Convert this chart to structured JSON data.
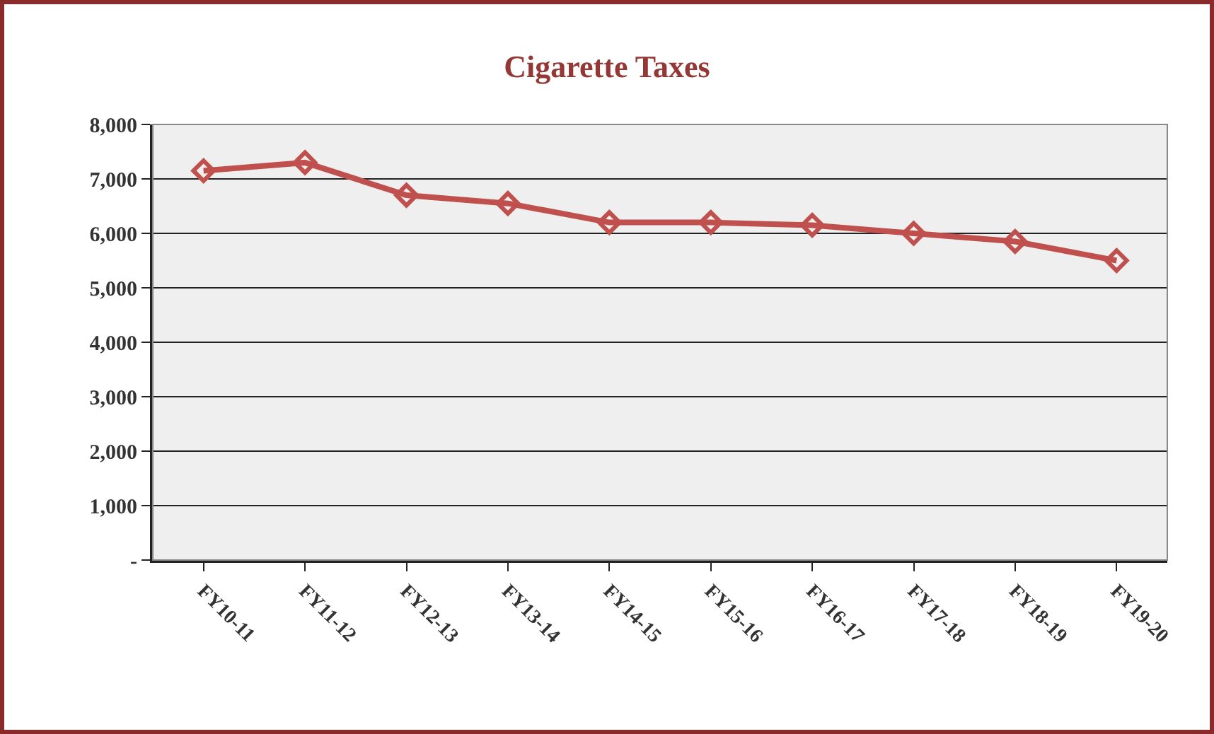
{
  "chart_data": {
    "type": "line",
    "title": "Cigarette Taxes",
    "categories": [
      "FY10-11",
      "FY11-12",
      "FY12-13",
      "FY13-14",
      "FY14-15",
      "FY15-16",
      "FY16-17",
      "FY17-18",
      "FY18-19",
      "FY19-20"
    ],
    "series": [
      {
        "color": "#c0504d",
        "values": [
          7150,
          7300,
          6700,
          6550,
          6200,
          6200,
          6150,
          6000,
          5850,
          5500
        ]
      }
    ],
    "ylim": [
      0,
      8000
    ],
    "yticks": [
      {
        "value": 0,
        "label": "-"
      },
      {
        "value": 1000,
        "label": "1,000"
      },
      {
        "value": 2000,
        "label": "2,000"
      },
      {
        "value": 3000,
        "label": "3,000"
      },
      {
        "value": 4000,
        "label": "4,000"
      },
      {
        "value": 5000,
        "label": "5,000"
      },
      {
        "value": 6000,
        "label": "6,000"
      },
      {
        "value": 7000,
        "label": "7,000"
      },
      {
        "value": 8000,
        "label": "8,000"
      }
    ],
    "grid": "y",
    "marker": "diamond",
    "line_style": "solid"
  }
}
